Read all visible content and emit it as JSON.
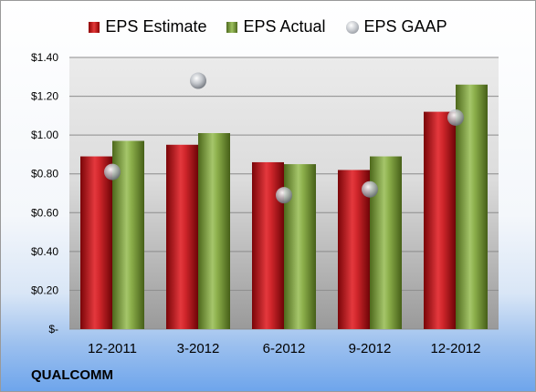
{
  "legend": {
    "estimate": "EPS Estimate",
    "actual": "EPS Actual",
    "gaap": "EPS GAAP"
  },
  "company": "QUALCOMM",
  "colors": {
    "estimate": "#c0161b",
    "actual": "#7e9c3c",
    "gaap": "#b9bcc2",
    "plot_top": "#ebebeb",
    "plot_bottom": "#9a9a9a"
  },
  "chart_data": {
    "type": "bar",
    "categories": [
      "12-2011",
      "3-2012",
      "6-2012",
      "9-2012",
      "12-2012"
    ],
    "series": [
      {
        "name": "EPS Estimate",
        "values": [
          0.89,
          0.95,
          0.86,
          0.82,
          1.12
        ]
      },
      {
        "name": "EPS Actual",
        "values": [
          0.97,
          1.01,
          0.85,
          0.89,
          1.26
        ]
      },
      {
        "name": "EPS GAAP",
        "type": "scatter",
        "values": [
          0.81,
          1.28,
          0.69,
          0.72,
          1.09
        ]
      }
    ],
    "yticks": [
      "$-",
      "$0.20",
      "$0.40",
      "$0.60",
      "$0.80",
      "$1.00",
      "$1.20",
      "$1.40"
    ],
    "ylim": [
      0,
      1.4
    ],
    "grid": true,
    "legend_position": "top"
  }
}
